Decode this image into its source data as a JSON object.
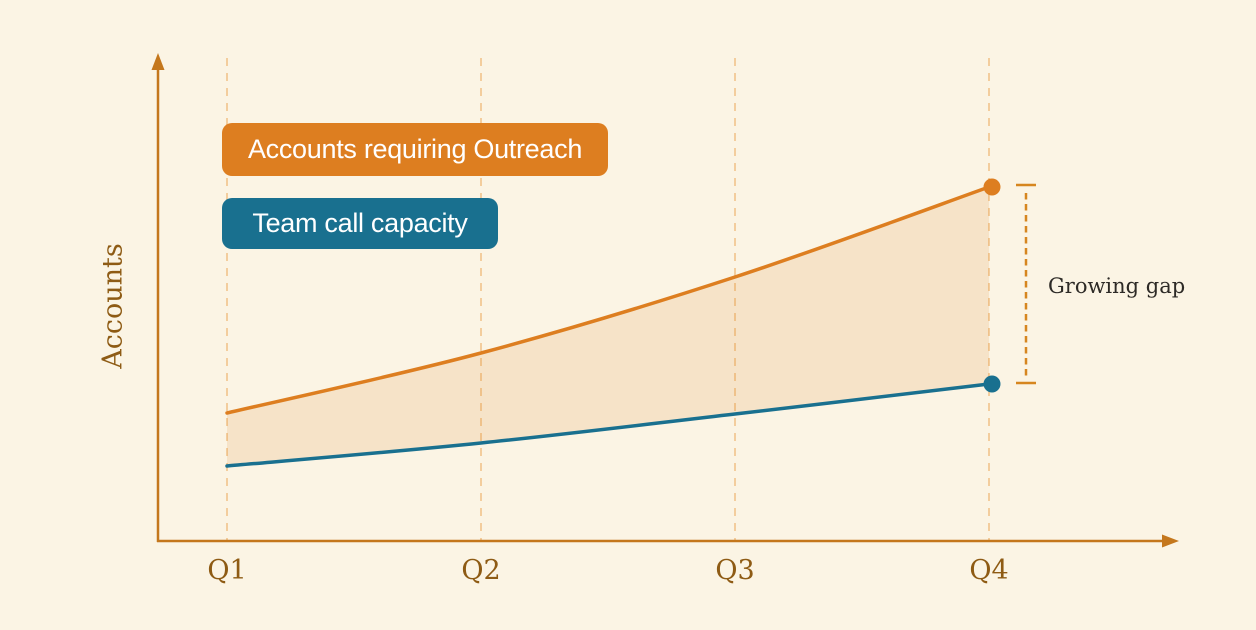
{
  "chart_data": {
    "type": "area",
    "title": "",
    "xlabel": "",
    "ylabel": "Accounts",
    "categories": [
      "Q1",
      "Q2",
      "Q3",
      "Q4"
    ],
    "series": [
      {
        "name": "Accounts requiring Outreach",
        "values": [
          128,
          188,
          264,
          354
        ],
        "color": "#DD7E20"
      },
      {
        "name": "Team call capacity",
        "values": [
          75,
          98,
          127,
          157
        ],
        "color": "#19708F"
      }
    ],
    "y_unit": "relative (axis unlabeled)",
    "ylim": [
      0,
      486
    ],
    "grid": "dashed-vertical-quarter-lines",
    "legend_position": "top-left",
    "annotation": "Growing gap",
    "annotation_between": [
      "Accounts requiring Outreach",
      "Team call capacity"
    ],
    "annotation_at_category": "Q4"
  },
  "colors": {
    "background": "#FBF4E4",
    "axis": "#C4771C",
    "grid": "#F3CD9D",
    "fill": "rgba(223,127,35,0.14)",
    "outreach": "#DD7E20",
    "capacity": "#19708F",
    "tick_label": "#8E5B14",
    "gap_indicator": "#D6861F",
    "gap_text": "#2D2A26"
  }
}
